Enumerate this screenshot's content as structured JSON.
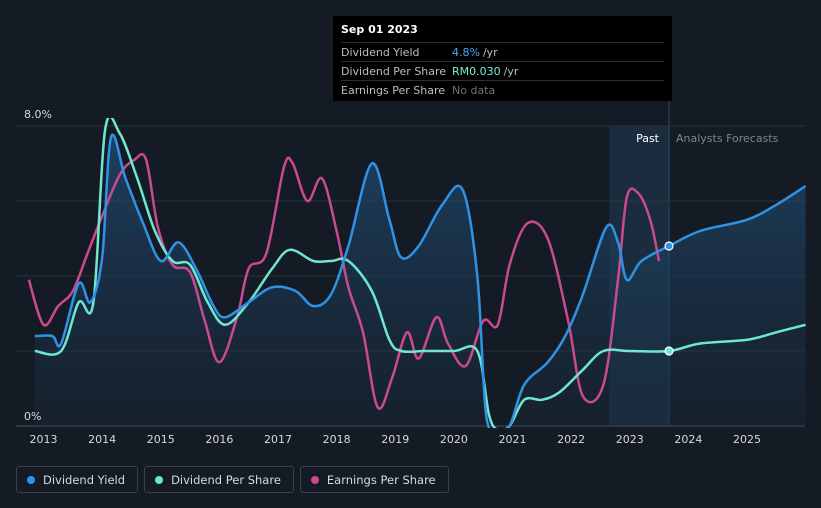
{
  "tooltip": {
    "date": "Sep 01 2023",
    "rows": [
      {
        "label": "Dividend Yield",
        "value": "4.8%",
        "unit": "/yr"
      },
      {
        "label": "Dividend Per Share",
        "value": "RM0.030",
        "unit": "/yr"
      },
      {
        "label": "Earnings Per Share",
        "value": "No data",
        "unit": ""
      }
    ]
  },
  "regions": {
    "past": "Past",
    "forecast": "Analysts Forecasts"
  },
  "legend": [
    {
      "label": "Dividend Yield",
      "color": "#2e93e6"
    },
    {
      "label": "Dividend Per Share",
      "color": "#6ee7cf"
    },
    {
      "label": "Earnings Per Share",
      "color": "#c94a8f"
    }
  ],
  "chart_data": {
    "type": "line",
    "title": "",
    "xlabel": "",
    "ylabel": "",
    "ylim": [
      0,
      8.0
    ],
    "xlim": [
      2012.75,
      2026.0
    ],
    "y_tick_labels": [
      "8.0%",
      "0%"
    ],
    "x_tick_labels": [
      "2013",
      "2014",
      "2015",
      "2016",
      "2017",
      "2018",
      "2019",
      "2020",
      "2021",
      "2022",
      "2023",
      "2024",
      "2025"
    ],
    "x_ticks": [
      2013,
      2014,
      2015,
      2016,
      2017,
      2018,
      2019,
      2020,
      2021,
      2022,
      2023,
      2024,
      2025
    ],
    "gridlines": [
      8.0,
      6.0,
      4.0,
      2.0,
      0
    ],
    "past_forecast_split": 2023.67,
    "highlight_start": 2022.65,
    "series": [
      {
        "name": "Dividend Yield",
        "color": "#2e93e6",
        "points": [
          [
            2012.85,
            2.4
          ],
          [
            2013.15,
            2.4
          ],
          [
            2013.3,
            2.2
          ],
          [
            2013.6,
            3.8
          ],
          [
            2013.8,
            3.3
          ],
          [
            2014.0,
            4.5
          ],
          [
            2014.15,
            7.7
          ],
          [
            2014.4,
            6.6
          ],
          [
            2014.7,
            5.4
          ],
          [
            2015.0,
            4.4
          ],
          [
            2015.3,
            4.9
          ],
          [
            2015.6,
            4.2
          ],
          [
            2015.9,
            3.2
          ],
          [
            2016.1,
            2.9
          ],
          [
            2016.5,
            3.3
          ],
          [
            2016.9,
            3.7
          ],
          [
            2017.3,
            3.6
          ],
          [
            2017.6,
            3.2
          ],
          [
            2017.9,
            3.5
          ],
          [
            2018.2,
            4.8
          ],
          [
            2018.6,
            7.0
          ],
          [
            2018.9,
            5.5
          ],
          [
            2019.1,
            4.5
          ],
          [
            2019.4,
            4.8
          ],
          [
            2019.8,
            5.9
          ],
          [
            2020.15,
            6.3
          ],
          [
            2020.4,
            4.0
          ],
          [
            2020.55,
            0.3
          ],
          [
            2020.75,
            -0.1
          ],
          [
            2020.95,
            0.0
          ],
          [
            2021.2,
            1.1
          ],
          [
            2021.6,
            1.7
          ],
          [
            2021.9,
            2.4
          ],
          [
            2022.2,
            3.5
          ],
          [
            2022.6,
            5.3
          ],
          [
            2022.8,
            4.9
          ],
          [
            2022.95,
            3.9
          ],
          [
            2023.2,
            4.4
          ],
          [
            2023.67,
            4.8
          ],
          [
            2024.2,
            5.2
          ],
          [
            2025.0,
            5.5
          ],
          [
            2025.5,
            5.9
          ],
          [
            2026.0,
            6.4
          ]
        ]
      },
      {
        "name": "Dividend Per Share",
        "color": "#6ee7cf",
        "points": [
          [
            2012.85,
            2.0
          ],
          [
            2013.3,
            2.0
          ],
          [
            2013.6,
            3.3
          ],
          [
            2013.85,
            3.3
          ],
          [
            2014.05,
            7.9
          ],
          [
            2014.3,
            7.8
          ],
          [
            2014.6,
            6.6
          ],
          [
            2014.9,
            5.2
          ],
          [
            2015.2,
            4.4
          ],
          [
            2015.5,
            4.3
          ],
          [
            2015.8,
            3.3
          ],
          [
            2016.1,
            2.7
          ],
          [
            2016.5,
            3.3
          ],
          [
            2016.9,
            4.2
          ],
          [
            2017.2,
            4.7
          ],
          [
            2017.6,
            4.4
          ],
          [
            2017.9,
            4.4
          ],
          [
            2018.2,
            4.4
          ],
          [
            2018.6,
            3.6
          ],
          [
            2018.9,
            2.3
          ],
          [
            2019.1,
            2.0
          ],
          [
            2019.5,
            2.0
          ],
          [
            2020.0,
            2.0
          ],
          [
            2020.4,
            2.0
          ],
          [
            2020.6,
            0.3
          ],
          [
            2020.75,
            -0.1
          ],
          [
            2020.95,
            0.0
          ],
          [
            2021.2,
            0.7
          ],
          [
            2021.5,
            0.7
          ],
          [
            2021.8,
            0.9
          ],
          [
            2022.2,
            1.5
          ],
          [
            2022.55,
            2.0
          ],
          [
            2023.0,
            2.0
          ],
          [
            2023.67,
            2.0
          ],
          [
            2024.2,
            2.2
          ],
          [
            2025.0,
            2.3
          ],
          [
            2025.5,
            2.5
          ],
          [
            2026.0,
            2.7
          ]
        ]
      },
      {
        "name": "Earnings Per Share",
        "color": "#c94a8f",
        "points": [
          [
            2012.75,
            3.9
          ],
          [
            2013.0,
            2.7
          ],
          [
            2013.25,
            3.2
          ],
          [
            2013.5,
            3.6
          ],
          [
            2013.75,
            4.6
          ],
          [
            2014.0,
            5.6
          ],
          [
            2014.3,
            6.7
          ],
          [
            2014.55,
            7.1
          ],
          [
            2014.75,
            7.1
          ],
          [
            2014.95,
            5.3
          ],
          [
            2015.2,
            4.3
          ],
          [
            2015.5,
            4.1
          ],
          [
            2015.75,
            2.8
          ],
          [
            2016.0,
            1.7
          ],
          [
            2016.3,
            2.9
          ],
          [
            2016.5,
            4.2
          ],
          [
            2016.8,
            4.6
          ],
          [
            2017.1,
            6.9
          ],
          [
            2017.25,
            7.0
          ],
          [
            2017.5,
            6.0
          ],
          [
            2017.75,
            6.6
          ],
          [
            2018.0,
            5.2
          ],
          [
            2018.2,
            3.7
          ],
          [
            2018.45,
            2.5
          ],
          [
            2018.7,
            0.5
          ],
          [
            2018.95,
            1.3
          ],
          [
            2019.2,
            2.5
          ],
          [
            2019.4,
            1.8
          ],
          [
            2019.7,
            2.9
          ],
          [
            2019.9,
            2.2
          ],
          [
            2020.2,
            1.6
          ],
          [
            2020.5,
            2.8
          ],
          [
            2020.75,
            2.7
          ],
          [
            2020.95,
            4.3
          ],
          [
            2021.25,
            5.4
          ],
          [
            2021.6,
            5.0
          ],
          [
            2021.95,
            2.8
          ],
          [
            2022.2,
            0.8
          ],
          [
            2022.55,
            1.1
          ],
          [
            2022.8,
            3.9
          ],
          [
            2022.95,
            6.1
          ],
          [
            2023.15,
            6.2
          ],
          [
            2023.35,
            5.5
          ],
          [
            2023.5,
            4.4
          ]
        ]
      }
    ]
  }
}
